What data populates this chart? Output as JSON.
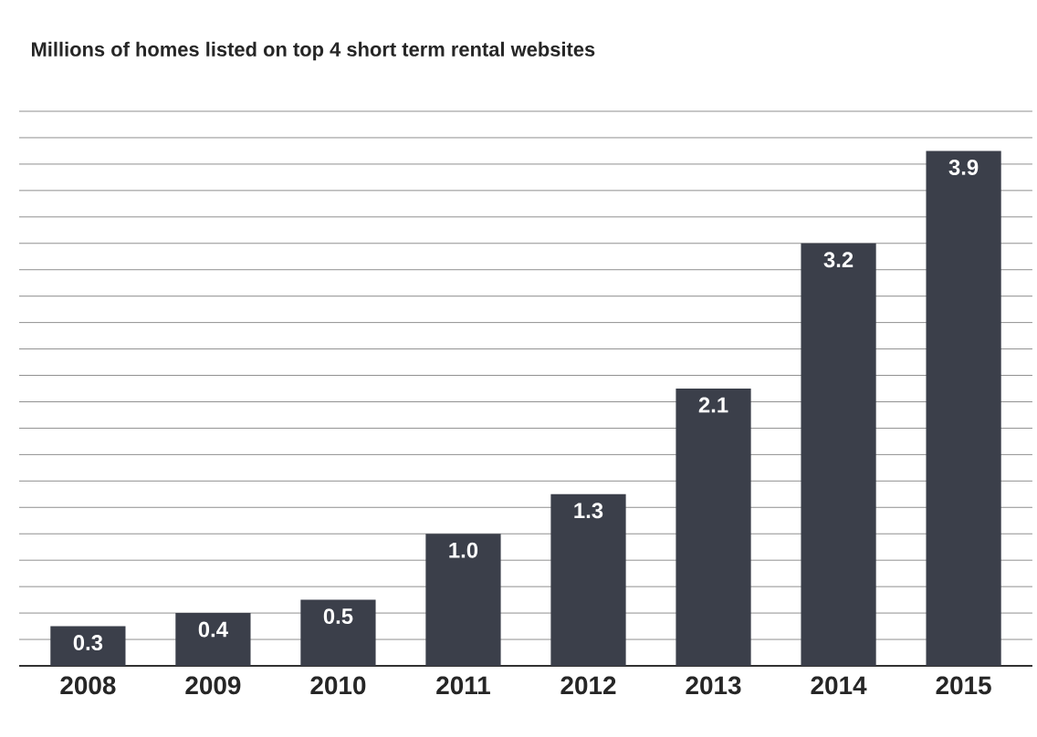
{
  "chart_data": {
    "type": "bar",
    "title": "Millions of homes listed on top 4 short term rental websites",
    "categories": [
      "2008",
      "2009",
      "2010",
      "2011",
      "2012",
      "2013",
      "2014",
      "2015"
    ],
    "values": [
      0.3,
      0.4,
      0.5,
      1.0,
      1.3,
      2.1,
      3.2,
      3.9
    ],
    "value_labels": [
      "0.3",
      "0.4",
      "0.5",
      "1.0",
      "1.3",
      "2.1",
      "3.2",
      "3.9"
    ],
    "color": "#3b3f4a",
    "grid": "y",
    "tick_labels": "x"
  }
}
